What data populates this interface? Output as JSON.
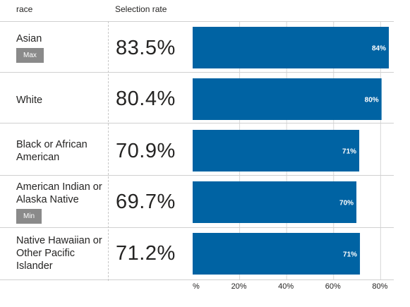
{
  "header": {
    "category_label": "race",
    "rate_label": "Selection rate"
  },
  "badges": {
    "max": "Max",
    "min": "Min"
  },
  "chart_data": {
    "type": "bar",
    "orientation": "horizontal",
    "categories": [
      "Asian",
      "White",
      "Black or African American",
      "American Indian or Alaska Native",
      "Native Hawaiian or Other Pacific Islander"
    ],
    "values": [
      83.5,
      80.4,
      70.9,
      69.7,
      71.2
    ],
    "rate_text": [
      "83.5%",
      "80.4%",
      "70.9%",
      "69.7%",
      "71.2%"
    ],
    "data_labels": [
      "84%",
      "80%",
      "71%",
      "70%",
      "71%"
    ],
    "badges": [
      "Max",
      "",
      "",
      "Min",
      ""
    ],
    "x_ticks": [
      {
        "value": 0,
        "label": "%"
      },
      {
        "value": 20,
        "label": "20%"
      },
      {
        "value": 40,
        "label": "40%"
      },
      {
        "value": 60,
        "label": "60%"
      },
      {
        "value": 80,
        "label": "80%"
      }
    ],
    "xlim": [
      0,
      85
    ],
    "bar_color": "#0063a3",
    "grid": true
  }
}
